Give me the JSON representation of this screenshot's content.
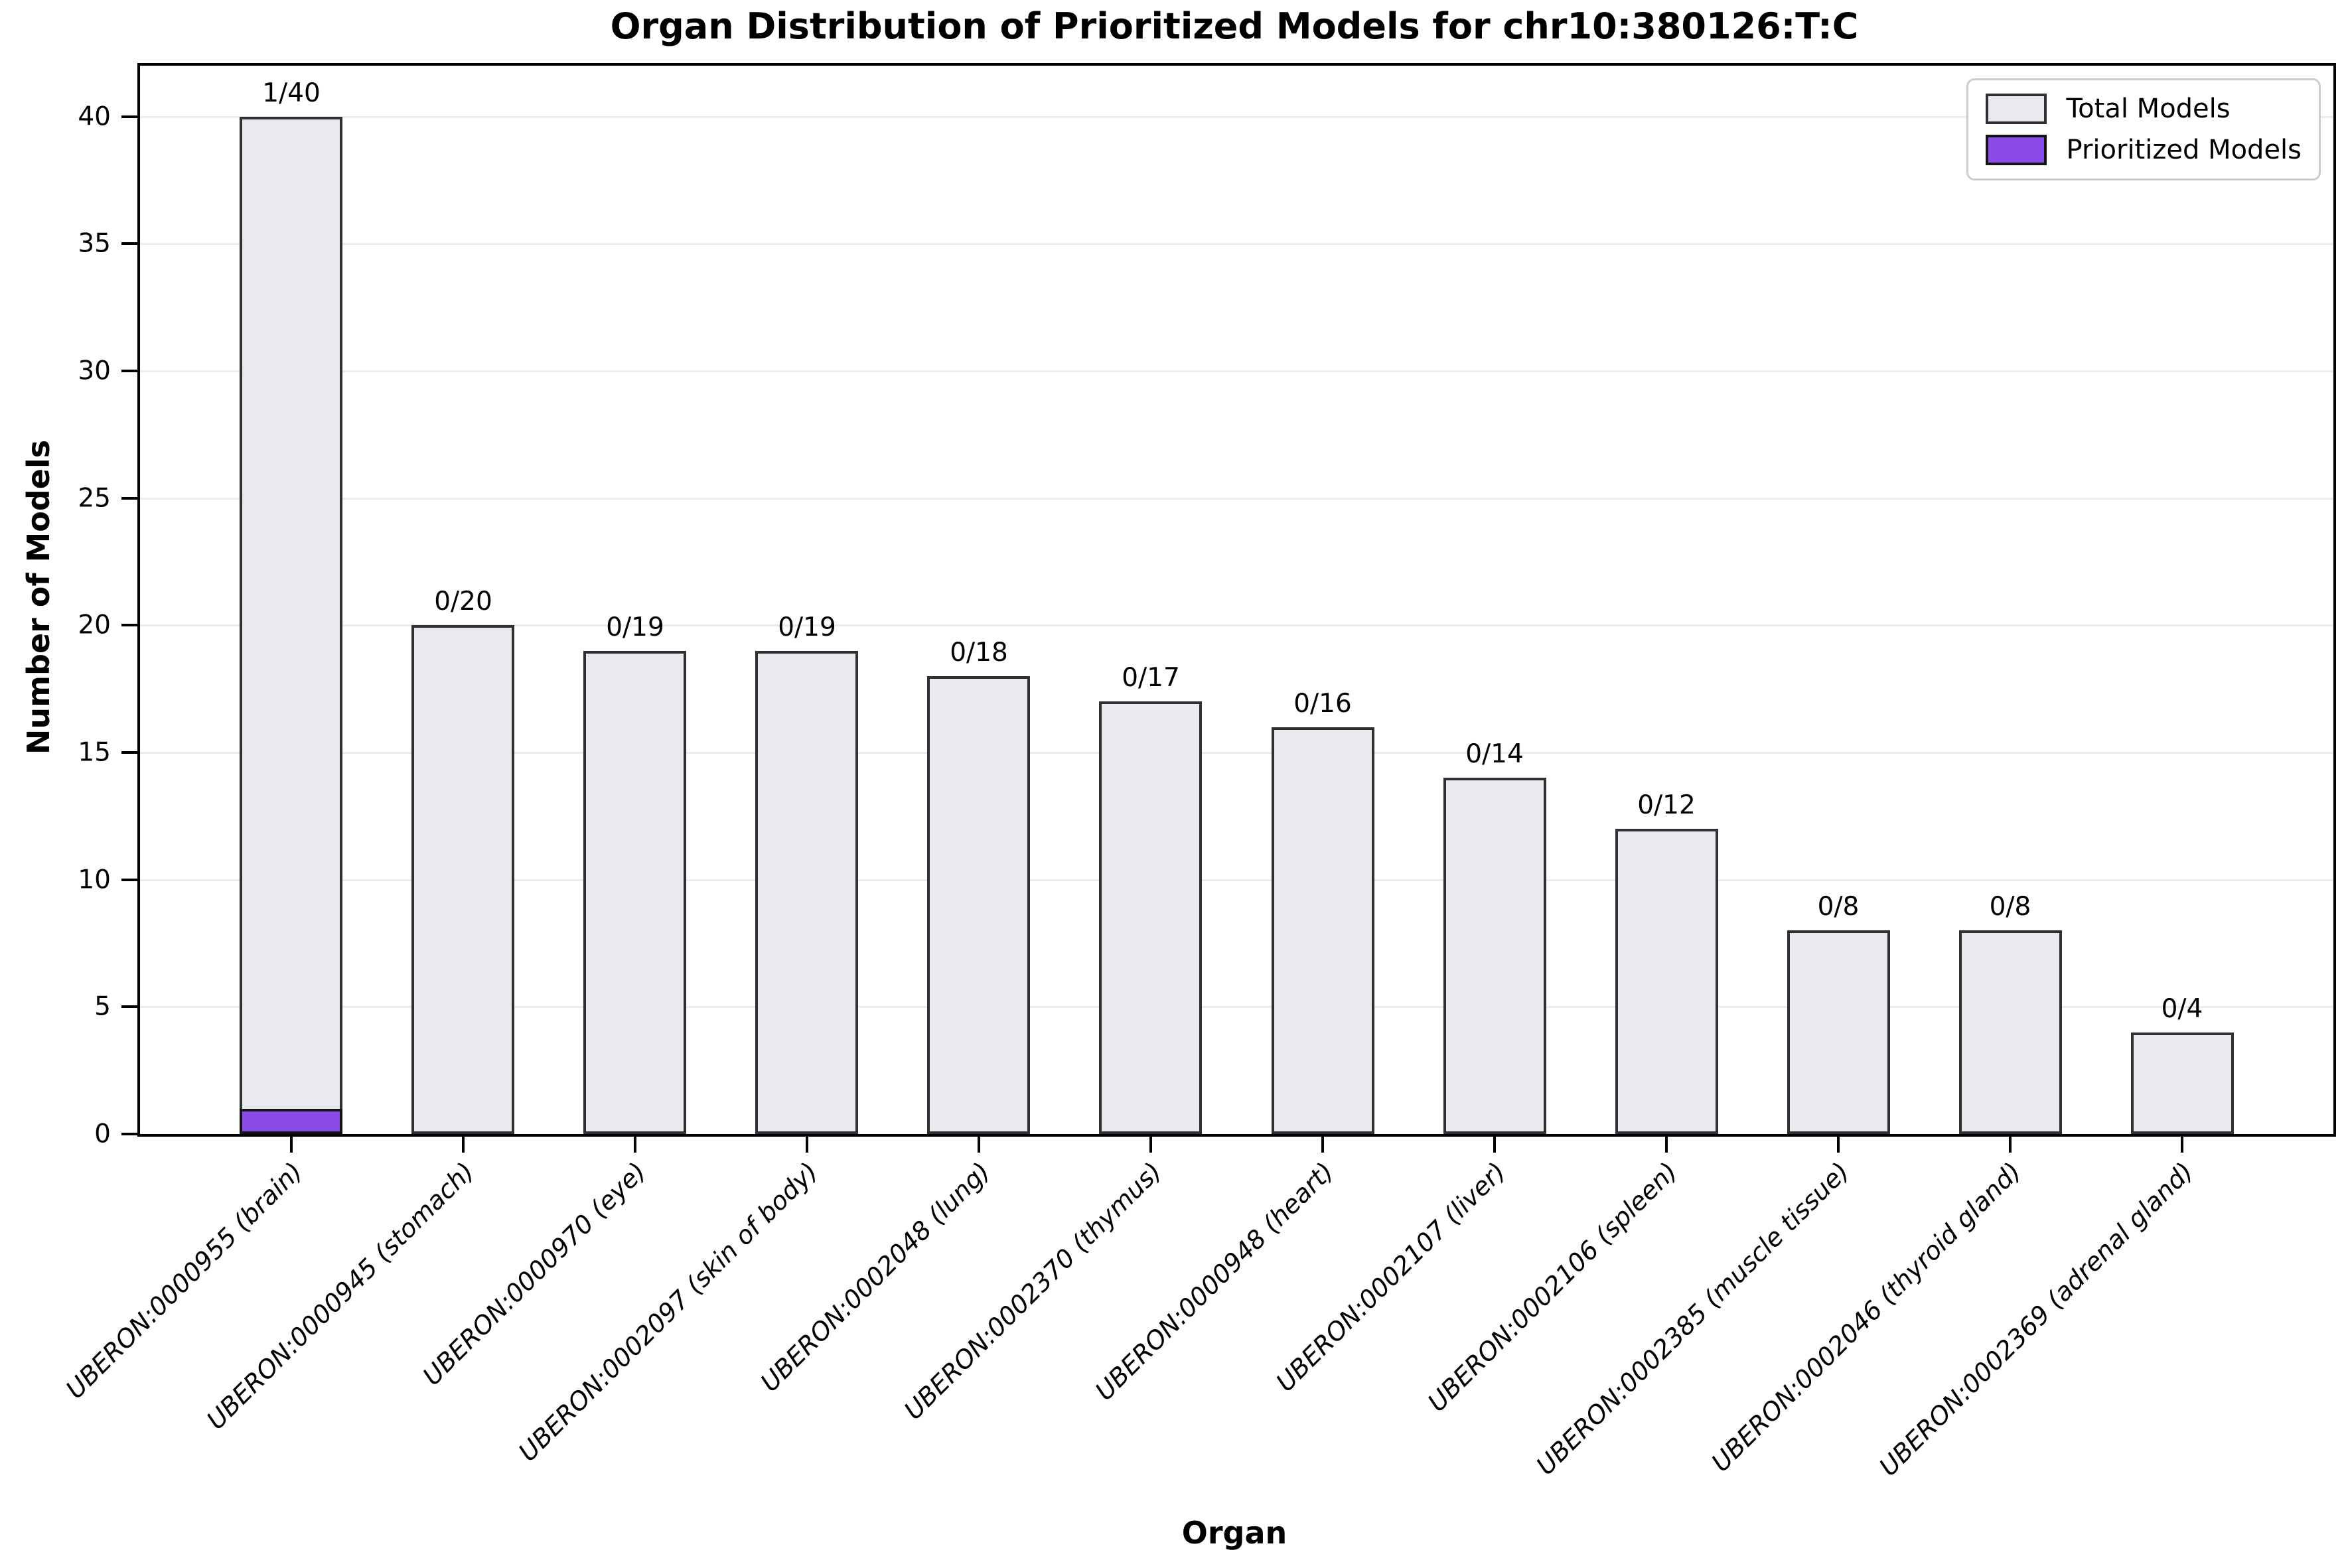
{
  "title": "Organ Distribution of Prioritized Models for chr10:380126:T:C",
  "legend": {
    "entries": [
      {
        "label": "Total Models",
        "color": "#E8EAEE",
        "edge": "#2E3033"
      },
      {
        "label": "Prioritized Models",
        "color": "#8A4BE8",
        "edge": "#141414"
      }
    ]
  },
  "chart_data": {
    "type": "bar",
    "title": "Organ Distribution of Prioritized Models for chr10:380126:T:C",
    "xlabel": "Organ",
    "ylabel": "Number of Models",
    "categories": [
      "UBERON:0000955 (brain)",
      "UBERON:0000945 (stomach)",
      "UBERON:0000970 (eye)",
      "UBERON:0002097 (skin of body)",
      "UBERON:0002048 (lung)",
      "UBERON:0002370 (thymus)",
      "UBERON:0000948 (heart)",
      "UBERON:0002107 (liver)",
      "UBERON:0002106 (spleen)",
      "UBERON:0002385 (muscle tissue)",
      "UBERON:0002046 (thyroid gland)",
      "UBERON:0002369 (adrenal gland)"
    ],
    "series": [
      {
        "name": "Total Models",
        "values": [
          40,
          20,
          19,
          19,
          18,
          17,
          16,
          14,
          12,
          8,
          8,
          4
        ],
        "color": "#E8EAEE"
      },
      {
        "name": "Prioritized Models",
        "values": [
          1,
          0,
          0,
          0,
          0,
          0,
          0,
          0,
          0,
          0,
          0,
          0
        ],
        "color": "#8A4BE8"
      }
    ],
    "bar_labels": [
      "1/40",
      "0/20",
      "0/19",
      "0/19",
      "0/18",
      "0/17",
      "0/16",
      "0/14",
      "0/12",
      "0/8",
      "0/8",
      "0/4"
    ],
    "yticks": [
      0,
      5,
      10,
      15,
      20,
      25,
      30,
      35,
      40
    ],
    "ylim": [
      0,
      42
    ],
    "xlim": [
      -0.88,
      11.88
    ],
    "bar_width": 0.6,
    "grid": true,
    "legend_position": "upper right",
    "colors": {
      "grid": "#ececec",
      "spine": "#000000",
      "bar_fill": "#E8EAEE",
      "bar_edge": "#2E3033",
      "prioritized_fill": "#8A4BE8",
      "prioritized_edge": "#141414"
    }
  }
}
